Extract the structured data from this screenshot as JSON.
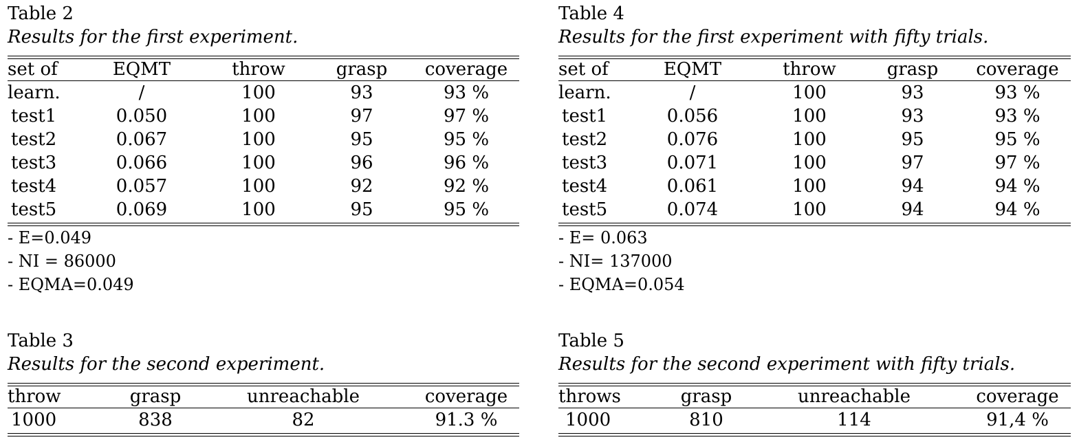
{
  "table2": {
    "label": "Table 2",
    "caption": "Results for the first experiment.",
    "headers": [
      "set of",
      "EQMT",
      "throw",
      "grasp",
      "coverage"
    ],
    "rows": [
      [
        "learn.",
        "/",
        "100",
        "93",
        "93 %"
      ],
      [
        " test1",
        "0.050",
        "100",
        "97",
        "97 %"
      ],
      [
        " test2",
        "0.067",
        "100",
        "95",
        "95 %"
      ],
      [
        " test3",
        "0.066",
        "100",
        "96",
        "96 %"
      ],
      [
        " test4",
        "0.057",
        "100",
        "92",
        "92 %"
      ],
      [
        " test5",
        "0.069",
        "100",
        "95",
        "95 %"
      ]
    ],
    "notes": [
      "- E=0.049",
      "- NI = 86000",
      "- EQMA=0.049"
    ]
  },
  "table4": {
    "label": "Table 4",
    "caption": "Results for the first experiment with fifty trials.",
    "headers": [
      "set of",
      "EQMT",
      "throw",
      "grasp",
      "coverage"
    ],
    "rows": [
      [
        "learn.",
        "/",
        "100",
        "93",
        "93 %"
      ],
      [
        " test1",
        "0.056",
        "100",
        "93",
        "93 %"
      ],
      [
        " test2",
        "0.076",
        "100",
        "95",
        "95 %"
      ],
      [
        " test3",
        "0.071",
        "100",
        "97",
        "97 %"
      ],
      [
        " test4",
        "0.061",
        "100",
        "94",
        "94 %"
      ],
      [
        " test5",
        "0.074",
        "100",
        "94",
        "94 %"
      ]
    ],
    "notes": [
      "- E= 0.063",
      "- NI= 137000",
      "- EQMA=0.054"
    ]
  },
  "table3": {
    "label": "Table 3",
    "caption": "Results for the second experiment.",
    "headers": [
      "throw",
      "grasp",
      "unreachable",
      "coverage"
    ],
    "rows": [
      [
        "1000",
        "838",
        "82",
        "91.3 %"
      ]
    ]
  },
  "table5": {
    "label": "Table 5",
    "caption": "Results for the second experiment with fifty trials.",
    "headers": [
      "throws",
      "grasp",
      "unreachable",
      "coverage"
    ],
    "rows": [
      [
        " 1000",
        "810",
        "114",
        "91,4 %"
      ]
    ]
  }
}
